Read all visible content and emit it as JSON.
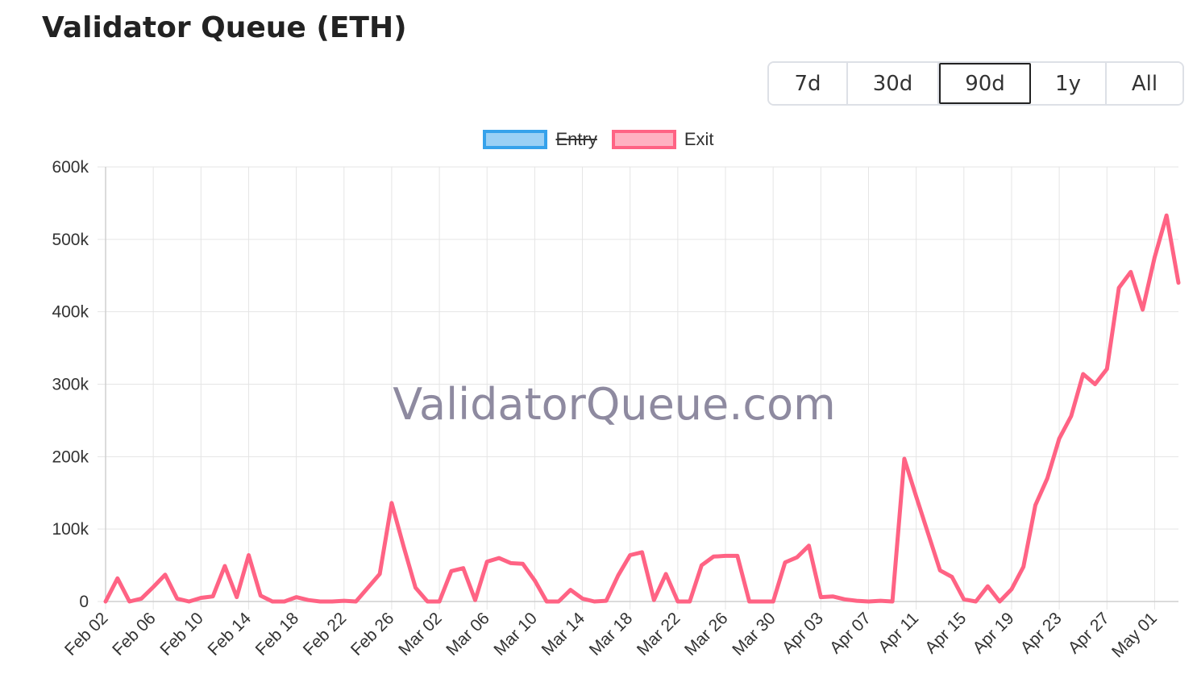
{
  "title": "Validator Queue (ETH)",
  "range_buttons": [
    {
      "label": "7d",
      "active": false
    },
    {
      "label": "30d",
      "active": false
    },
    {
      "label": "90d",
      "active": true
    },
    {
      "label": "1y",
      "active": false
    },
    {
      "label": "All",
      "active": false
    }
  ],
  "watermark": "ValidatorQueue.com",
  "colors": {
    "entry_border": "#36a2eb",
    "entry_fill": "#9ad0f5",
    "exit_border": "#ff6384",
    "exit_fill": "#ffb1c1",
    "grid": "#e5e5e5"
  },
  "chart_data": {
    "type": "line",
    "title": "",
    "xlabel": "",
    "ylabel": "",
    "ylim": [
      0,
      600000
    ],
    "y_ticks": [
      "0",
      "100k",
      "200k",
      "300k",
      "400k",
      "500k",
      "600k"
    ],
    "x_tick_labels": [
      "Feb 02",
      "Feb 06",
      "Feb 10",
      "Feb 14",
      "Feb 18",
      "Feb 22",
      "Feb 26",
      "Mar 02",
      "Mar 06",
      "Mar 10",
      "Mar 14",
      "Mar 18",
      "Mar 22",
      "Mar 26",
      "Mar 30",
      "Apr 03",
      "Apr 07",
      "Apr 11",
      "Apr 15",
      "Apr 19",
      "Apr 23",
      "Apr 27",
      "May 01"
    ],
    "grid": true,
    "legend_position": "top-center",
    "series": [
      {
        "name": "Entry",
        "hidden": true,
        "values": []
      },
      {
        "name": "Exit",
        "hidden": false,
        "values": [
          0,
          32000,
          0,
          4000,
          20000,
          37000,
          4000,
          0,
          5000,
          7000,
          49000,
          6000,
          64000,
          8000,
          0,
          0,
          6000,
          2000,
          0,
          0,
          1000,
          0,
          19000,
          38000,
          136000,
          76000,
          19000,
          0,
          0,
          42000,
          46000,
          2000,
          55000,
          60000,
          53000,
          52000,
          29000,
          0,
          0,
          16000,
          4000,
          0,
          1000,
          36000,
          64000,
          68000,
          2000,
          38000,
          0,
          0,
          50000,
          62000,
          63000,
          63000,
          0,
          0,
          0,
          54000,
          61000,
          77000,
          6000,
          7000,
          3000,
          1000,
          0,
          1000,
          0,
          197000,
          145000,
          94000,
          43000,
          34000,
          3000,
          0,
          21000,
          0,
          17000,
          48000,
          133000,
          170000,
          225000,
          256000,
          314000,
          300000,
          321000,
          433000,
          455000,
          403000,
          475000,
          533000,
          440000
        ]
      }
    ]
  }
}
